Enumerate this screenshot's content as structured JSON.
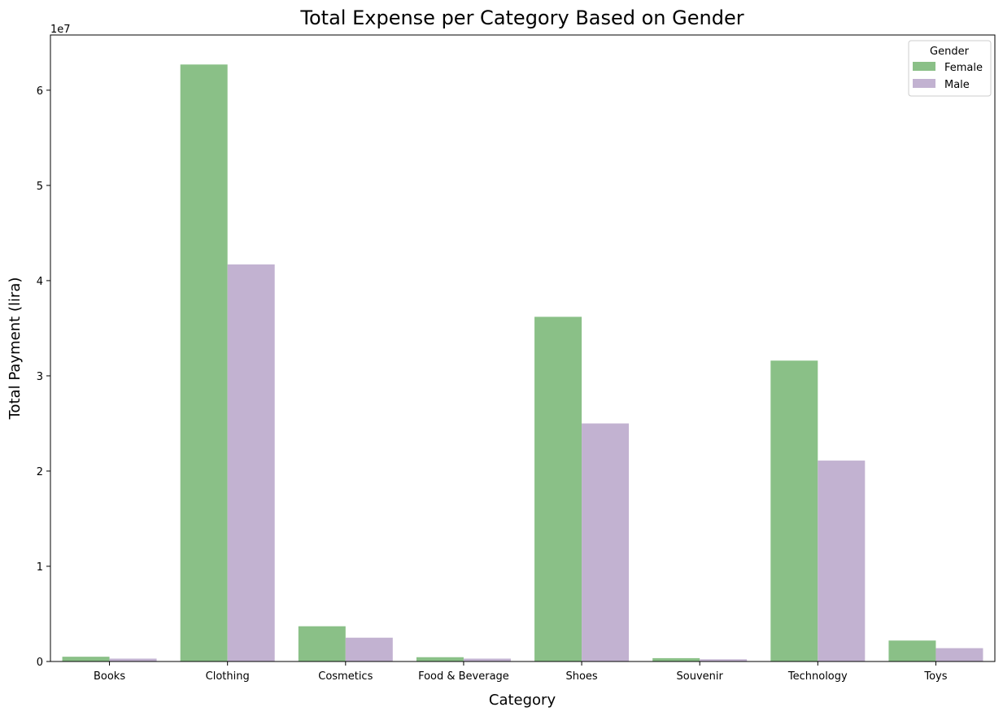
{
  "chart_data": {
    "type": "bar",
    "title": "Total Expense per Category Based on Gender",
    "xlabel": "Category",
    "ylabel": "Total Payment (lira)",
    "y_offset_label": "1e7",
    "ylim": [
      0,
      65800000
    ],
    "yticks": [
      0,
      10000000,
      20000000,
      30000000,
      40000000,
      50000000,
      60000000
    ],
    "ytick_labels": [
      "0",
      "1",
      "2",
      "3",
      "4",
      "5",
      "6"
    ],
    "categories": [
      "Books",
      "Clothing",
      "Cosmetics",
      "Food & Beverage",
      "Shoes",
      "Souvenir",
      "Technology",
      "Toys"
    ],
    "series": [
      {
        "name": "Female",
        "color": "#8ac087",
        "values": [
          500000,
          62700000,
          3700000,
          450000,
          36200000,
          350000,
          31600000,
          2200000
        ]
      },
      {
        "name": "Male",
        "color": "#c2b2d1",
        "values": [
          300000,
          41700000,
          2500000,
          300000,
          25000000,
          230000,
          21100000,
          1400000
        ]
      }
    ],
    "legend": {
      "title": "Gender",
      "placement": "top-right"
    },
    "grid": false
  }
}
